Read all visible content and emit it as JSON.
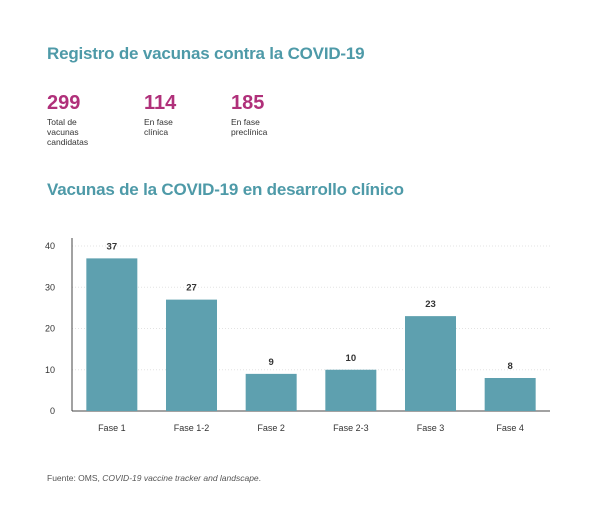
{
  "header": {
    "title": "Registro de vacunas contra la COVID-19"
  },
  "stats": [
    {
      "value": "299",
      "label_line1": "Total de vacunas",
      "label_line2": "candidatas"
    },
    {
      "value": "114",
      "label_line1": "En fase clínica",
      "label_line2": ""
    },
    {
      "value": "185",
      "label_line1": "En fase preclínica",
      "label_line2": ""
    }
  ],
  "colors": {
    "title": "#4e9aa8",
    "stat_number": "#b0307a",
    "bar": "#5ea0af",
    "gridline": "#e3e3e3"
  },
  "chart_data": {
    "type": "bar",
    "title": "Vacunas de la COVID-19 en desarrollo clínico",
    "categories": [
      "Fase 1",
      "Fase 1-2",
      "Fase 2",
      "Fase 2-3",
      "Fase 3",
      "Fase 4"
    ],
    "values": [
      37,
      27,
      9,
      10,
      23,
      8
    ],
    "data_labels": [
      "37",
      "27",
      "9",
      "10",
      "23",
      "8"
    ],
    "yticks": [
      "0",
      "10",
      "20",
      "30",
      "40"
    ],
    "ylim": [
      0,
      40
    ],
    "xlabel": "",
    "ylabel": "",
    "grid": true,
    "grid_style": "dotted-horizontal"
  },
  "source": {
    "prefix": "Fuente: OMS, ",
    "italic": "COVID-19 vaccine tracker and landscape",
    "suffix": "."
  }
}
